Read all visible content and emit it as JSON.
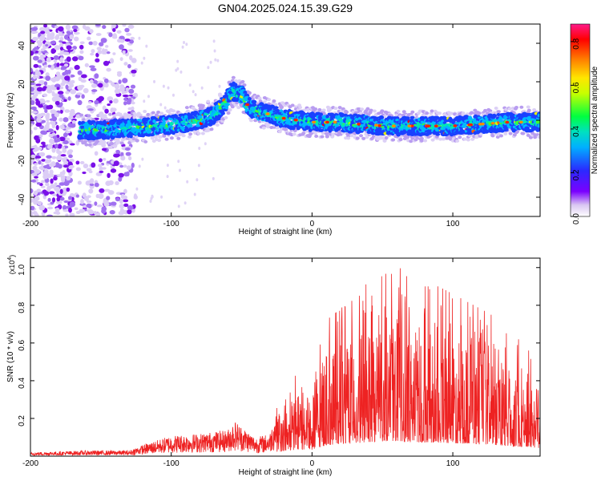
{
  "chart_data": [
    {
      "type": "heatmap",
      "title": "GN04.2025.024.15.39.G29",
      "xlabel": "Height of straight line (km)",
      "ylabel": "Frequency (Hz)",
      "xlim": [
        -200,
        162
      ],
      "ylim": [
        -50,
        50
      ],
      "xticks": [
        -200,
        -100,
        0,
        100
      ],
      "xtick_labels": [
        "-200",
        "-100",
        "0",
        "100"
      ],
      "yticks": [
        -40,
        -20,
        0,
        20,
        40
      ],
      "ytick_labels": [
        "-40",
        "-20",
        "0",
        "20",
        "40"
      ],
      "ridge": {
        "x": [
          -165,
          -150,
          -130,
          -110,
          -95,
          -80,
          -70,
          -62,
          -57,
          -50,
          -45,
          -40,
          -30,
          -20,
          -10,
          0,
          10,
          20,
          30,
          40,
          50,
          60,
          80,
          100,
          120,
          140,
          160
        ],
        "freq": [
          -5,
          -5,
          -4,
          -3,
          -2,
          0,
          3,
          8,
          15,
          13,
          7,
          5,
          3,
          1,
          0,
          -1,
          -1,
          -1,
          -2,
          -2,
          -3,
          -3,
          -3,
          -3,
          -2,
          -1,
          -1
        ]
      },
      "colorbar": {
        "label": "Normalized spectral amplitude",
        "range": [
          0,
          0.88
        ],
        "ticks": [
          0.0,
          0.2,
          0.4,
          0.6,
          0.8
        ],
        "tick_labels": [
          "0.0",
          "0.2",
          "0.4",
          "0.6",
          "0.8"
        ]
      }
    },
    {
      "type": "line",
      "xlabel": "Height of straight line (km)",
      "ylabel": "SNR (10 * v/v)",
      "multiplier_label": "(x10",
      "multiplier_exp": "4",
      "xlim": [
        -200,
        162
      ],
      "ylim": [
        0,
        1.05
      ],
      "xticks": [
        -200,
        -100,
        0,
        100
      ],
      "xtick_labels": [
        "-200",
        "-100",
        "0",
        "100"
      ],
      "yticks": [
        0.2,
        0.4,
        0.6,
        0.8,
        1.0
      ],
      "ytick_labels": [
        "0.2",
        "0.4",
        "0.6",
        "0.8",
        "1.0"
      ],
      "series": [
        {
          "name": "SNR",
          "color": "#ee2222",
          "envelope_x": [
            -200,
            -160,
            -130,
            -120,
            -100,
            -80,
            -60,
            -55,
            -40,
            -30,
            -25,
            -10,
            0,
            10,
            20,
            30,
            40,
            50,
            60,
            70,
            80,
            90,
            100,
            110,
            120,
            130,
            140,
            150,
            162
          ],
          "envelope_peak": [
            0.02,
            0.03,
            0.03,
            0.06,
            0.11,
            0.12,
            0.14,
            0.19,
            0.1,
            0.12,
            0.26,
            0.45,
            0.42,
            0.72,
            0.78,
            0.85,
            0.93,
            0.98,
            1.02,
            0.93,
            0.9,
            0.9,
            0.86,
            0.82,
            0.78,
            0.74,
            0.66,
            0.6,
            0.54
          ]
        }
      ]
    }
  ],
  "colors": {
    "snr_line": "#ee2222",
    "axis": "#000000",
    "background": "#ffffff"
  }
}
